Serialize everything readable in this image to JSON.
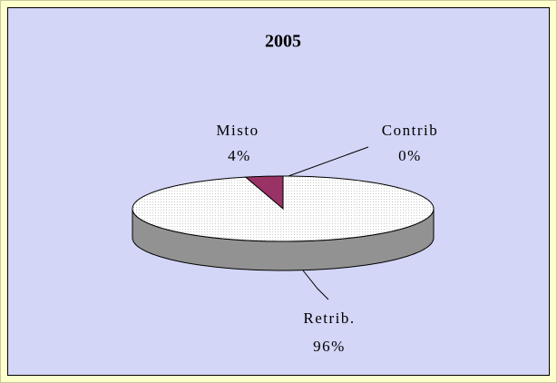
{
  "chart_data": {
    "type": "pie",
    "title": "2005",
    "categories": [
      "Misto",
      "Contrib",
      "Retrib."
    ],
    "values": [
      4,
      0,
      96
    ],
    "value_labels": [
      "4%",
      "0%",
      "96%"
    ],
    "colors": [
      "#993366",
      "#ffffff",
      "#f4f4f4"
    ],
    "style": "3d"
  }
}
